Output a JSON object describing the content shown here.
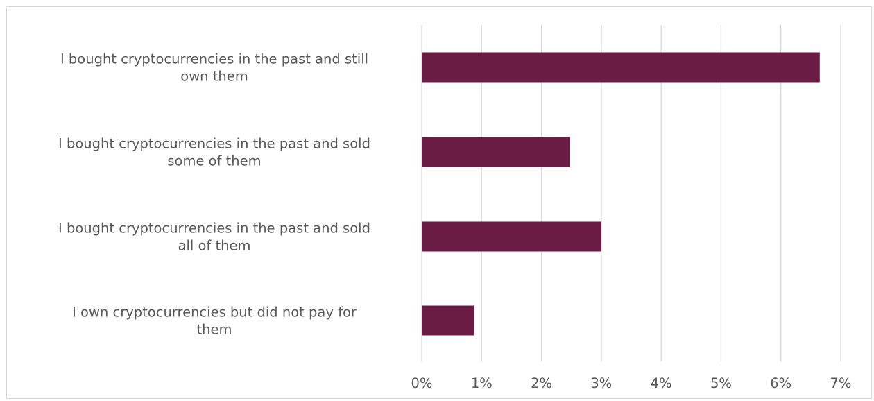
{
  "chart_data": {
    "type": "bar",
    "orientation": "horizontal",
    "categories": [
      [
        "I bought cryptocurrencies in the past and still",
        "own them"
      ],
      [
        "I bought cryptocurrencies in the past and sold",
        "some of them"
      ],
      [
        "I bought cryptocurrencies in the past and sold",
        "all of them"
      ],
      [
        "I own cryptocurrencies but did not pay for",
        "them"
      ]
    ],
    "values": [
      6.65,
      2.48,
      3.0,
      0.87
    ],
    "value_unit": "%",
    "xlim": [
      0,
      7
    ],
    "ticks": [
      "0%",
      "1%",
      "2%",
      "3%",
      "4%",
      "5%",
      "6%",
      "7%"
    ],
    "grid": true,
    "legend": "none",
    "title": "",
    "xlabel": "",
    "ylabel": "",
    "colors": {
      "bar": "#6a1c44",
      "grid": "#d9d9d9",
      "text": "#595959",
      "frame": "#d9d9d9"
    }
  }
}
